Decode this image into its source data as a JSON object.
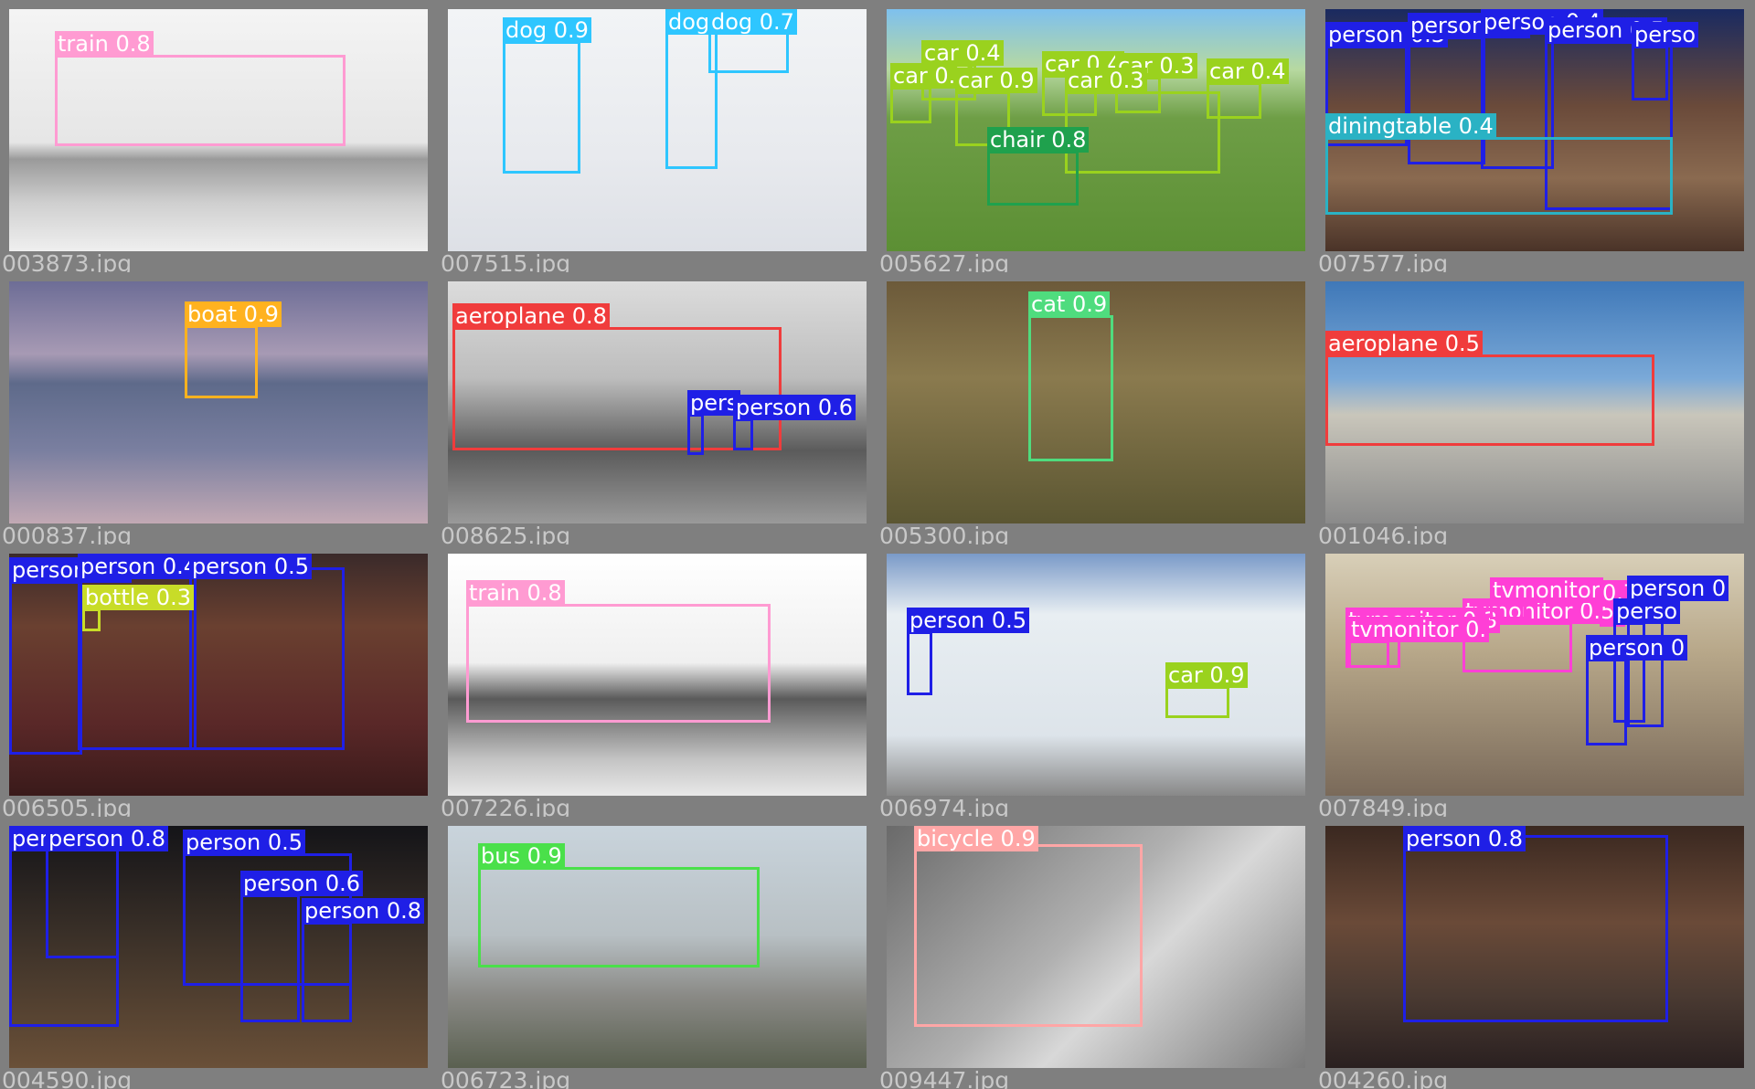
{
  "mosaic": {
    "colors": {
      "train": "#ff9bd2",
      "dog": "#2ec6ff",
      "car": "#9ad21e",
      "chair": "#1fa14d",
      "person": "#1f1fe6",
      "diningtable": "#2ab2c4",
      "boat": "#ffb21f",
      "aeroplane": "#f03c3c",
      "cat": "#4fdc7e",
      "bottle": "#c8dc28",
      "tvmonitor": "#ff3fd6",
      "bus": "#4ae04a",
      "bicycle": "#ffa6a6"
    },
    "tiles": [
      {
        "file": "003873.jpg",
        "scene": "bw-train",
        "dets": [
          {
            "label": "train 0.8",
            "cls": "train",
            "b": [
              50,
              50,
              318,
              100
            ]
          }
        ]
      },
      {
        "file": "007515.jpg",
        "scene": "snow",
        "dets": [
          {
            "label": "dog 0.9",
            "cls": "dog",
            "b": [
              60,
              35,
              85,
              145
            ]
          },
          {
            "label": "dog 0.",
            "cls": "dog",
            "b": [
              238,
              25,
              57,
              150
            ]
          },
          {
            "label": "dog 0.7",
            "cls": "dog",
            "b": [
              285,
              12,
              88,
              58
            ]
          }
        ]
      },
      {
        "file": "005627.jpg",
        "scene": "cars-park",
        "dets": [
          {
            "label": "car 0.4",
            "cls": "car",
            "b": [
              38,
              60,
              60,
              40
            ]
          },
          {
            "label": "car 0.7",
            "cls": "car",
            "b": [
              4,
              85,
              45,
              40
            ]
          },
          {
            "label": "car 0.9",
            "cls": "car",
            "b": [
              75,
              90,
              60,
              60
            ]
          },
          {
            "label": "car 0.4",
            "cls": "car",
            "b": [
              170,
              72,
              60,
              45
            ]
          },
          {
            "label": "car 0.3",
            "cls": "car",
            "b": [
              250,
              74,
              50,
              40
            ]
          },
          {
            "label": "car 0.3",
            "cls": "car",
            "b": [
              195,
              90,
              170,
              90
            ]
          },
          {
            "label": "car 0.4",
            "cls": "car",
            "b": [
              350,
              80,
              60,
              40
            ]
          },
          {
            "label": "chair 0.8",
            "cls": "chair",
            "b": [
              110,
              155,
              100,
              60
            ]
          }
        ]
      },
      {
        "file": "007577.jpg",
        "scene": "dinner",
        "dets": [
          {
            "label": "person 0.3",
            "cls": "person",
            "b": [
              0,
              40,
              90,
              110
            ]
          },
          {
            "label": "person 0.6",
            "cls": "person",
            "b": [
              90,
              30,
              85,
              140
            ]
          },
          {
            "label": "person 0.4",
            "cls": "person",
            "b": [
              170,
              25,
              80,
              150
            ]
          },
          {
            "label": "person 0.5",
            "cls": "person",
            "b": [
              240,
              35,
              140,
              185
            ]
          },
          {
            "label": "perso",
            "cls": "person",
            "b": [
              335,
              40,
              40,
              60
            ]
          },
          {
            "label": "diningtable 0.4",
            "cls": "diningtable",
            "b": [
              0,
              140,
              380,
              85
            ]
          }
        ]
      },
      {
        "file": "000837.jpg",
        "scene": "sea",
        "dets": [
          {
            "label": "boat 0.9",
            "cls": "boat",
            "b": [
              192,
              48,
              80,
              80
            ]
          }
        ]
      },
      {
        "file": "008625.jpg",
        "scene": "bw-plane",
        "dets": [
          {
            "label": "aeroplane 0.8",
            "cls": "aeroplane",
            "b": [
              5,
              50,
              360,
              135
            ]
          },
          {
            "label": "pers",
            "cls": "person",
            "b": [
              262,
              145,
              18,
              45
            ]
          },
          {
            "label": "person 0.6",
            "cls": "person",
            "b": [
              312,
              150,
              22,
              35
            ]
          }
        ]
      },
      {
        "file": "005300.jpg",
        "scene": "cat-hay",
        "dets": [
          {
            "label": "cat 0.9",
            "cls": "cat",
            "b": [
              155,
              37,
              93,
              160
            ]
          }
        ]
      },
      {
        "file": "001046.jpg",
        "scene": "plane-tarmac",
        "dets": [
          {
            "label": "aeroplane 0.5",
            "cls": "aeroplane",
            "b": [
              0,
              80,
              360,
              100
            ]
          }
        ]
      },
      {
        "file": "006505.jpg",
        "scene": "sofa",
        "dets": [
          {
            "label": "person 0.3",
            "cls": "person",
            "b": [
              0,
              30,
              80,
              190
            ]
          },
          {
            "label": "person 0.4",
            "cls": "person",
            "b": [
              75,
              15,
              130,
              200
            ]
          },
          {
            "label": "person 0.5",
            "cls": "person",
            "b": [
              197,
              15,
              170,
              200
            ]
          },
          {
            "label": "bottle 0.3",
            "cls": "bottle",
            "b": [
              80,
              60,
              20,
              25
            ]
          }
        ]
      },
      {
        "file": "007226.jpg",
        "scene": "bw-loco",
        "dets": [
          {
            "label": "train 0.8",
            "cls": "train",
            "b": [
              20,
              55,
              333,
              130
            ]
          }
        ]
      },
      {
        "file": "006974.jpg",
        "scene": "building",
        "dets": [
          {
            "label": "person 0.5",
            "cls": "person",
            "b": [
              22,
              85,
              28,
              70
            ]
          },
          {
            "label": "car 0.9",
            "cls": "car",
            "b": [
              305,
              145,
              70,
              35
            ]
          }
        ]
      },
      {
        "file": "007849.jpg",
        "scene": "office",
        "dets": [
          {
            "label": "tvmonitor 0.5",
            "cls": "tvmonitor",
            "b": [
              150,
              75,
              120,
              55
            ]
          },
          {
            "label": "tvmonitor 0.3",
            "cls": "tvmonitor",
            "b": [
              22,
              85,
              60,
              40
            ]
          },
          {
            "label": "tvmonitor 0.",
            "cls": "tvmonitor",
            "b": [
              25,
              95,
              45,
              30
            ]
          },
          {
            "label": "tvmonitor",
            "cls": "tvmonitor",
            "b": [
              180,
              52,
              40,
              20
            ]
          },
          {
            "label": "0.7",
            "cls": "tvmonitor",
            "b": [
              300,
              55,
              28,
              25
            ]
          },
          {
            "label": "person 0",
            "cls": "person",
            "b": [
              330,
              50,
              40,
              140
            ]
          },
          {
            "label": "perso",
            "cls": "person",
            "b": [
              315,
              75,
              35,
              110
            ]
          },
          {
            "label": "person 0",
            "cls": "person",
            "b": [
              285,
              115,
              45,
              95
            ]
          }
        ]
      },
      {
        "file": "004590.jpg",
        "scene": "restaurant",
        "dets": [
          {
            "label": "person 0.8",
            "cls": "person",
            "b": [
              0,
              20,
              120,
              200
            ]
          },
          {
            "label": "person 0.8",
            "cls": "person",
            "b": [
              40,
              0,
              80,
              145
            ]
          },
          {
            "label": "person 0.5",
            "cls": "person",
            "b": [
              190,
              30,
              185,
              145
            ]
          },
          {
            "label": "person 0.6",
            "cls": "person",
            "b": [
              253,
              75,
              65,
              140
            ]
          },
          {
            "label": "person 0.8",
            "cls": "person",
            "b": [
              320,
              105,
              55,
              110
            ]
          }
        ]
      },
      {
        "file": "006723.jpg",
        "scene": "bus-street",
        "dets": [
          {
            "label": "bus 0.9",
            "cls": "bus",
            "b": [
              33,
              45,
              308,
              110
            ]
          }
        ]
      },
      {
        "file": "009447.jpg",
        "scene": "bicycle",
        "dets": [
          {
            "label": "bicycle 0.9",
            "cls": "bicycle",
            "b": [
              30,
              20,
              250,
              200
            ]
          }
        ]
      },
      {
        "file": "004260.jpg",
        "scene": "young-man",
        "dets": [
          {
            "label": "person 0.8",
            "cls": "person",
            "b": [
              85,
              10,
              290,
              205
            ]
          }
        ]
      }
    ]
  }
}
